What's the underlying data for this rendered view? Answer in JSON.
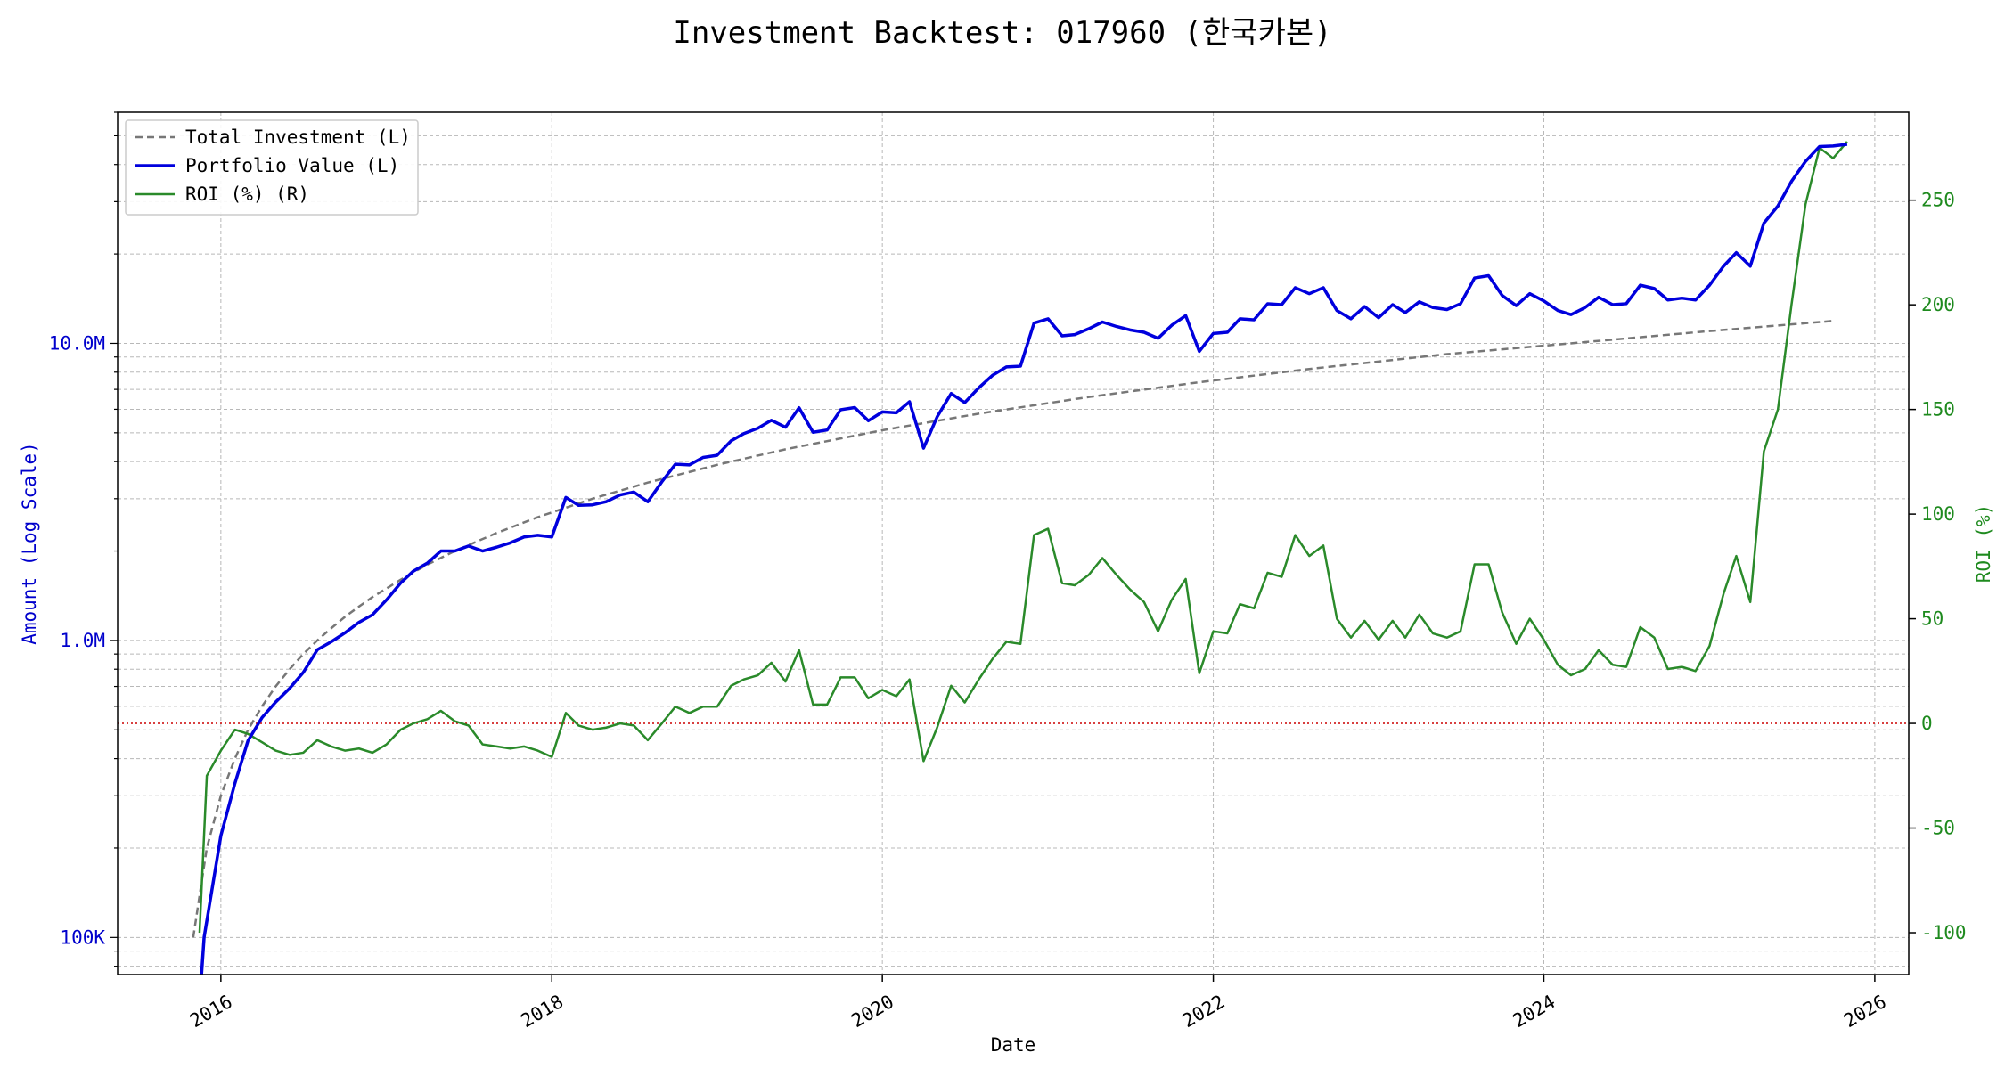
{
  "chart_data": {
    "type": "line",
    "title": "Investment Backtest: 017960 (한국카본)",
    "xlabel": "Date",
    "ylabel_left": "Amount (Log Scale)",
    "ylabel_right": "ROI (%)",
    "x_ticks": [
      "2016",
      "2018",
      "2020",
      "2022",
      "2024",
      "2026"
    ],
    "y_left_ticks": [
      "100K",
      "1.0M",
      "10.0M"
    ],
    "y_right_ticks": [
      "-100",
      "-50",
      "0",
      "50",
      "100",
      "150",
      "200",
      "250"
    ],
    "x_range": [
      "2015-05-18",
      "2026-03-17"
    ],
    "y_left_range": [
      75000,
      60000000
    ],
    "y_left_scale": "log",
    "y_right_range": [
      -120,
      292
    ],
    "grid": true,
    "legend_position": "top-left",
    "reference_line": {
      "y_right": 0,
      "color": "#cc0000",
      "style": "dotted"
    },
    "series_names": [
      "Total Investment (L)",
      "Portfolio Value (L)",
      "ROI (%) (R)"
    ],
    "series": [
      {
        "name": "Total Investment (L)",
        "axis": "left",
        "color": "#777777",
        "style": "dashed",
        "x": [
          "2015-11-01",
          "2015-12-01",
          "2016-01-01",
          "2016-02-01",
          "2016-03-01",
          "2016-04-01",
          "2016-05-01",
          "2016-06-01",
          "2016-07-01",
          "2016-08-01",
          "2016-09-01",
          "2016-10-01",
          "2016-11-01",
          "2016-12-01",
          "2017-02-01",
          "2017-04-01",
          "2017-06-01",
          "2017-09-01",
          "2017-12-01",
          "2018-04-01",
          "2018-08-01",
          "2019-01-01",
          "2019-06-01",
          "2020-01-01",
          "2020-08-01",
          "2021-04-01",
          "2021-12-01",
          "2022-08-01",
          "2023-06-01",
          "2024-04-01",
          "2025-01-01",
          "2025-10-01"
        ],
        "y": [
          100000,
          200000,
          300000,
          400000,
          500000,
          600000,
          700000,
          800000,
          900000,
          1000000,
          1100000,
          1200000,
          1300000,
          1400000,
          1600000,
          1800000,
          2000000,
          2300000,
          2600000,
          3000000,
          3400000,
          3900000,
          4400000,
          5100000,
          5800000,
          6600000,
          7400000,
          8200000,
          9200000,
          10100000,
          11000000,
          11900000
        ]
      },
      {
        "name": "Portfolio Value (L)",
        "axis": "left",
        "color": "#0000dd",
        "style": "solid",
        "x": [
          "2015-11-15",
          "2015-11-25",
          "2016-01-01",
          "2016-02-01",
          "2016-03-01",
          "2016-04-01",
          "2016-05-01",
          "2016-06-01",
          "2016-07-01",
          "2016-08-01",
          "2016-09-01",
          "2016-10-01",
          "2016-11-01",
          "2016-12-01",
          "2017-01-01",
          "2017-02-01",
          "2017-03-01",
          "2017-04-01",
          "2017-05-01",
          "2017-06-01",
          "2017-07-01",
          "2017-08-01",
          "2017-09-01",
          "2017-10-01",
          "2017-11-01",
          "2017-12-01",
          "2018-01-01",
          "2018-02-01",
          "2018-03-01",
          "2018-04-01",
          "2018-05-01",
          "2018-06-01",
          "2018-07-01",
          "2018-08-01",
          "2018-09-01",
          "2018-10-01",
          "2018-11-01",
          "2018-12-01",
          "2019-01-01",
          "2019-02-01",
          "2019-03-01",
          "2019-04-01",
          "2019-05-01",
          "2019-06-01",
          "2019-07-01",
          "2019-08-01",
          "2019-09-01",
          "2019-10-01",
          "2019-11-01",
          "2019-12-01",
          "2020-01-01",
          "2020-02-01",
          "2020-03-01",
          "2020-04-01",
          "2020-05-01",
          "2020-06-01",
          "2020-07-01",
          "2020-08-01",
          "2020-09-01",
          "2020-10-01",
          "2020-11-01",
          "2020-12-01",
          "2021-01-01",
          "2021-02-01",
          "2021-03-01",
          "2021-04-01",
          "2021-05-01",
          "2021-06-01",
          "2021-07-01",
          "2021-08-01",
          "2021-09-01",
          "2021-10-01",
          "2021-11-01",
          "2021-12-01",
          "2022-01-01",
          "2022-02-01",
          "2022-03-01",
          "2022-04-01",
          "2022-05-01",
          "2022-06-01",
          "2022-07-01",
          "2022-08-01",
          "2022-09-01",
          "2022-10-01",
          "2022-11-01",
          "2022-12-01",
          "2023-01-01",
          "2023-02-01",
          "2023-03-01",
          "2023-04-01",
          "2023-05-01",
          "2023-06-01",
          "2023-07-01",
          "2023-08-01",
          "2023-09-01",
          "2023-10-01",
          "2023-11-01",
          "2023-12-01",
          "2024-01-01",
          "2024-02-01",
          "2024-03-01",
          "2024-04-01",
          "2024-05-01",
          "2024-06-01",
          "2024-07-01",
          "2024-08-01",
          "2024-09-01",
          "2024-10-01",
          "2024-11-01",
          "2024-12-01",
          "2025-01-01",
          "2025-02-01",
          "2025-03-01",
          "2025-04-01",
          "2025-05-01",
          "2025-06-01",
          "2025-07-01",
          "2025-08-01",
          "2025-09-01",
          "2025-10-01",
          "2025-11-01"
        ],
        "y": [
          60000,
          100000,
          220000,
          330000,
          460000,
          550000,
          620000,
          690000,
          780000,
          930000,
          990000,
          1060000,
          1150000,
          1220000,
          1370000,
          1560000,
          1710000,
          1820000,
          2000000,
          2000000,
          2080000,
          2000000,
          2060000,
          2130000,
          2230000,
          2260000,
          2230000,
          3030000,
          2850000,
          2860000,
          2930000,
          3090000,
          3160000,
          2930000,
          3420000,
          3920000,
          3900000,
          4130000,
          4200000,
          4700000,
          4970000,
          5180000,
          5510000,
          5220000,
          6070000,
          5020000,
          5110000,
          5980000,
          6080000,
          5490000,
          5880000,
          5840000,
          6360000,
          4440000,
          5660000,
          6780000,
          6320000,
          7090000,
          7820000,
          8330000,
          8380000,
          11700000,
          12100000,
          10600000,
          10700000,
          11200000,
          11800000,
          11400000,
          11100000,
          10900000,
          10400000,
          11500000,
          12400000,
          9400000,
          10800000,
          10900000,
          12100000,
          12000000,
          13600000,
          13500000,
          15400000,
          14700000,
          15400000,
          12900000,
          12100000,
          13300000,
          12200000,
          13500000,
          12700000,
          13800000,
          13200000,
          13000000,
          13600000,
          16600000,
          16900000,
          14500000,
          13400000,
          14700000,
          13900000,
          12900000,
          12500000,
          13200000,
          14300000,
          13500000,
          13600000,
          15700000,
          15300000,
          14000000,
          14200000,
          14000000,
          15700000,
          18200000,
          20200000,
          18200000,
          25400000,
          29000000,
          35100000,
          41000000,
          46000000,
          46200000,
          46800000
        ]
      },
      {
        "name": "ROI (%) (R)",
        "axis": "right",
        "color": "#2a8a2a",
        "style": "solid",
        "x": [
          "2015-11-15",
          "2015-12-01",
          "2016-01-01",
          "2016-02-01",
          "2016-03-01",
          "2016-04-01",
          "2016-05-01",
          "2016-06-01",
          "2016-07-01",
          "2016-08-01",
          "2016-09-01",
          "2016-10-01",
          "2016-11-01",
          "2016-12-01",
          "2017-01-01",
          "2017-02-01",
          "2017-03-01",
          "2017-04-01",
          "2017-05-01",
          "2017-06-01",
          "2017-07-01",
          "2017-08-01",
          "2017-09-01",
          "2017-10-01",
          "2017-11-01",
          "2017-12-01",
          "2018-01-01",
          "2018-02-01",
          "2018-03-01",
          "2018-04-01",
          "2018-05-01",
          "2018-06-01",
          "2018-07-01",
          "2018-08-01",
          "2018-09-01",
          "2018-10-01",
          "2018-11-01",
          "2018-12-01",
          "2019-01-01",
          "2019-02-01",
          "2019-03-01",
          "2019-04-01",
          "2019-05-01",
          "2019-06-01",
          "2019-07-01",
          "2019-08-01",
          "2019-09-01",
          "2019-10-01",
          "2019-11-01",
          "2019-12-01",
          "2020-01-01",
          "2020-02-01",
          "2020-03-01",
          "2020-04-01",
          "2020-05-01",
          "2020-06-01",
          "2020-07-01",
          "2020-08-01",
          "2020-09-01",
          "2020-10-01",
          "2020-11-01",
          "2020-12-01",
          "2021-01-01",
          "2021-02-01",
          "2021-03-01",
          "2021-04-01",
          "2021-05-01",
          "2021-06-01",
          "2021-07-01",
          "2021-08-01",
          "2021-09-01",
          "2021-10-01",
          "2021-11-01",
          "2021-12-01",
          "2022-01-01",
          "2022-02-01",
          "2022-03-01",
          "2022-04-01",
          "2022-05-01",
          "2022-06-01",
          "2022-07-01",
          "2022-08-01",
          "2022-09-01",
          "2022-10-01",
          "2022-11-01",
          "2022-12-01",
          "2023-01-01",
          "2023-02-01",
          "2023-03-01",
          "2023-04-01",
          "2023-05-01",
          "2023-06-01",
          "2023-07-01",
          "2023-08-01",
          "2023-09-01",
          "2023-10-01",
          "2023-11-01",
          "2023-12-01",
          "2024-01-01",
          "2024-02-01",
          "2024-03-01",
          "2024-04-01",
          "2024-05-01",
          "2024-06-01",
          "2024-07-01",
          "2024-08-01",
          "2024-09-01",
          "2024-10-01",
          "2024-11-01",
          "2024-12-01",
          "2025-01-01",
          "2025-02-01",
          "2025-03-01",
          "2025-04-01",
          "2025-05-01",
          "2025-06-01",
          "2025-07-01",
          "2025-08-01",
          "2025-09-01",
          "2025-10-01",
          "2025-11-01"
        ],
        "y": [
          -100,
          -25,
          -13,
          -3,
          -5,
          -9,
          -13,
          -15,
          -14,
          -8,
          -11,
          -13,
          -12,
          -14,
          -10,
          -3,
          0,
          2,
          6,
          1,
          -1,
          -10,
          -11,
          -12,
          -11,
          -13,
          -16,
          5,
          -1,
          -3,
          -2,
          0,
          -1,
          -8,
          0,
          8,
          5,
          8,
          8,
          18,
          21,
          23,
          29,
          20,
          35,
          9,
          9,
          22,
          22,
          12,
          16,
          13,
          21,
          -18,
          -2,
          18,
          10,
          21,
          31,
          39,
          38,
          90,
          93,
          67,
          66,
          71,
          79,
          71,
          64,
          58,
          44,
          59,
          69,
          24,
          44,
          43,
          57,
          55,
          72,
          70,
          90,
          80,
          85,
          50,
          41,
          49,
          40,
          49,
          41,
          52,
          43,
          41,
          44,
          76,
          76,
          53,
          38,
          50,
          40,
          28,
          23,
          26,
          35,
          28,
          27,
          46,
          41,
          26,
          27,
          25,
          37,
          62,
          80,
          58,
          130,
          150,
          200,
          248,
          275,
          270,
          278
        ]
      }
    ]
  }
}
